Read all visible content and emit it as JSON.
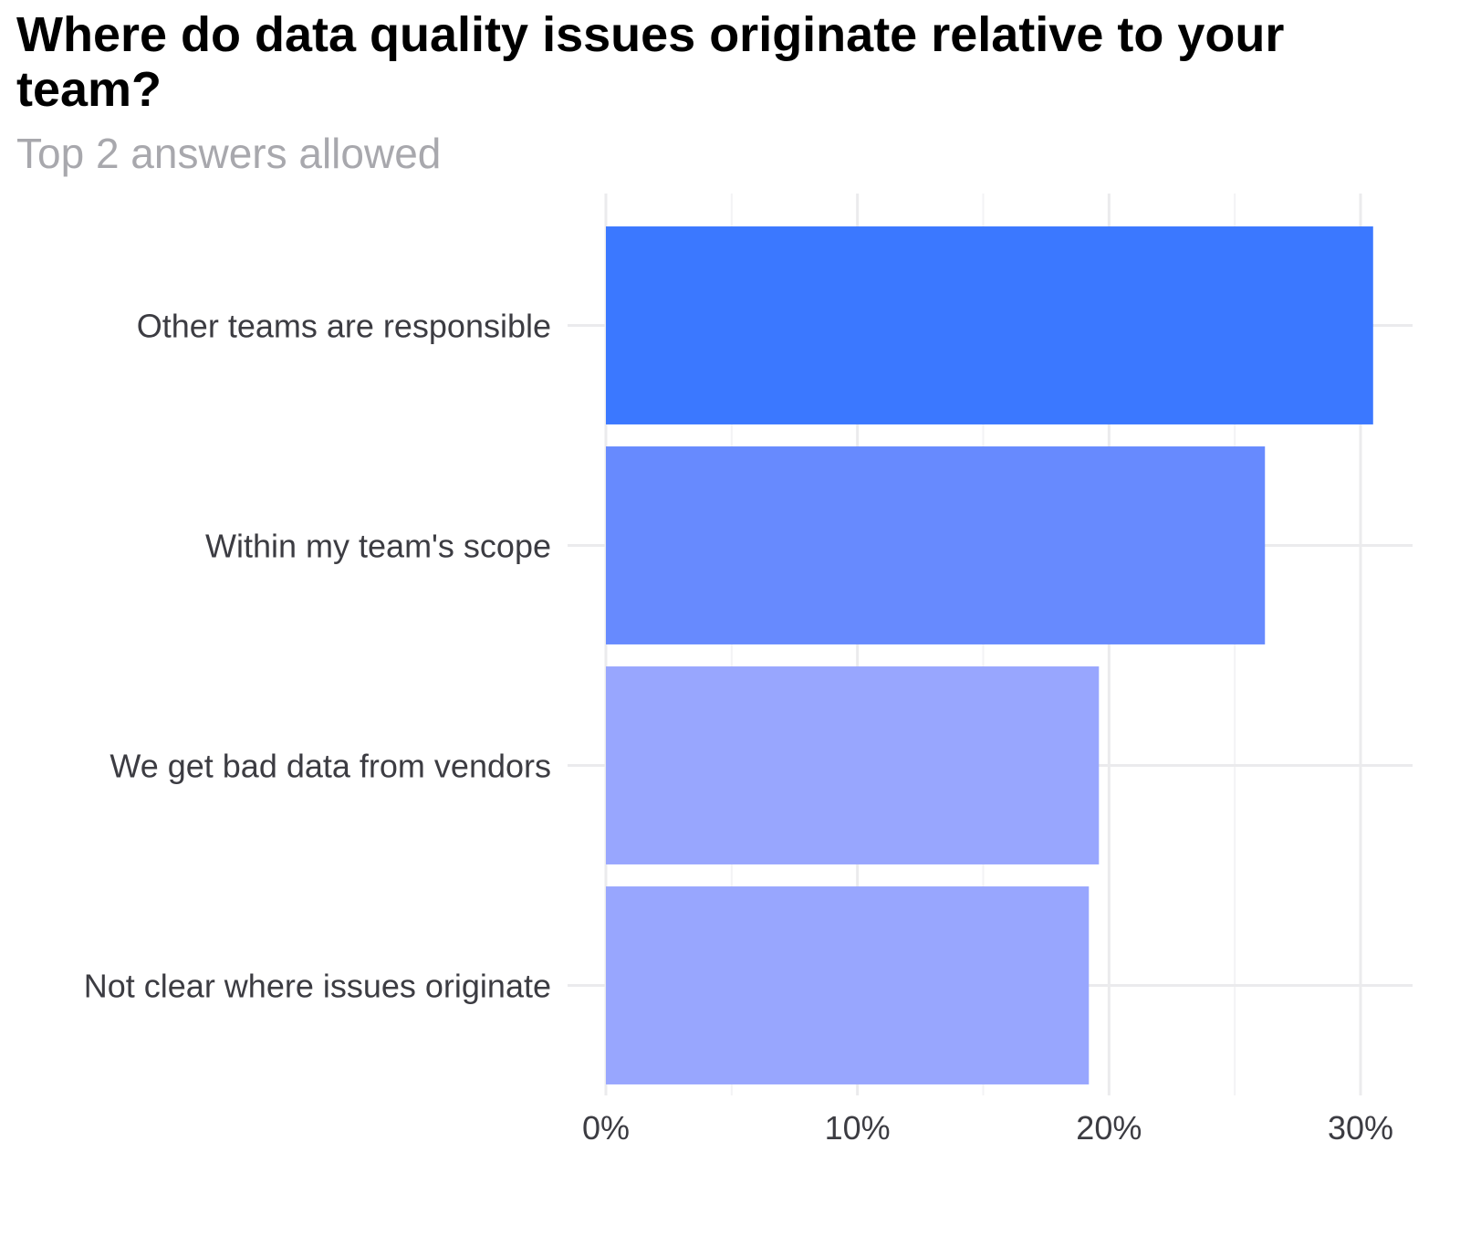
{
  "chart_data": {
    "type": "bar",
    "orientation": "horizontal",
    "title": "Where do data quality issues originate relative to your team?",
    "subtitle": "Top 2 answers allowed",
    "categories": [
      "Other teams are responsible",
      "Within my team's scope",
      "We get bad data from vendors",
      "Not clear where issues originate"
    ],
    "values": [
      30.5,
      26.2,
      19.6,
      19.2
    ],
    "colors": [
      "#3b78ff",
      "#678afe",
      "#98a6fe",
      "#98a6fe"
    ],
    "xlim": [
      0,
      32
    ],
    "x_ticks": [
      0,
      10,
      20,
      30
    ],
    "x_tick_labels": [
      "0%",
      "10%",
      "20%",
      "30%"
    ],
    "xlabel": "",
    "ylabel": "",
    "grid": true
  }
}
